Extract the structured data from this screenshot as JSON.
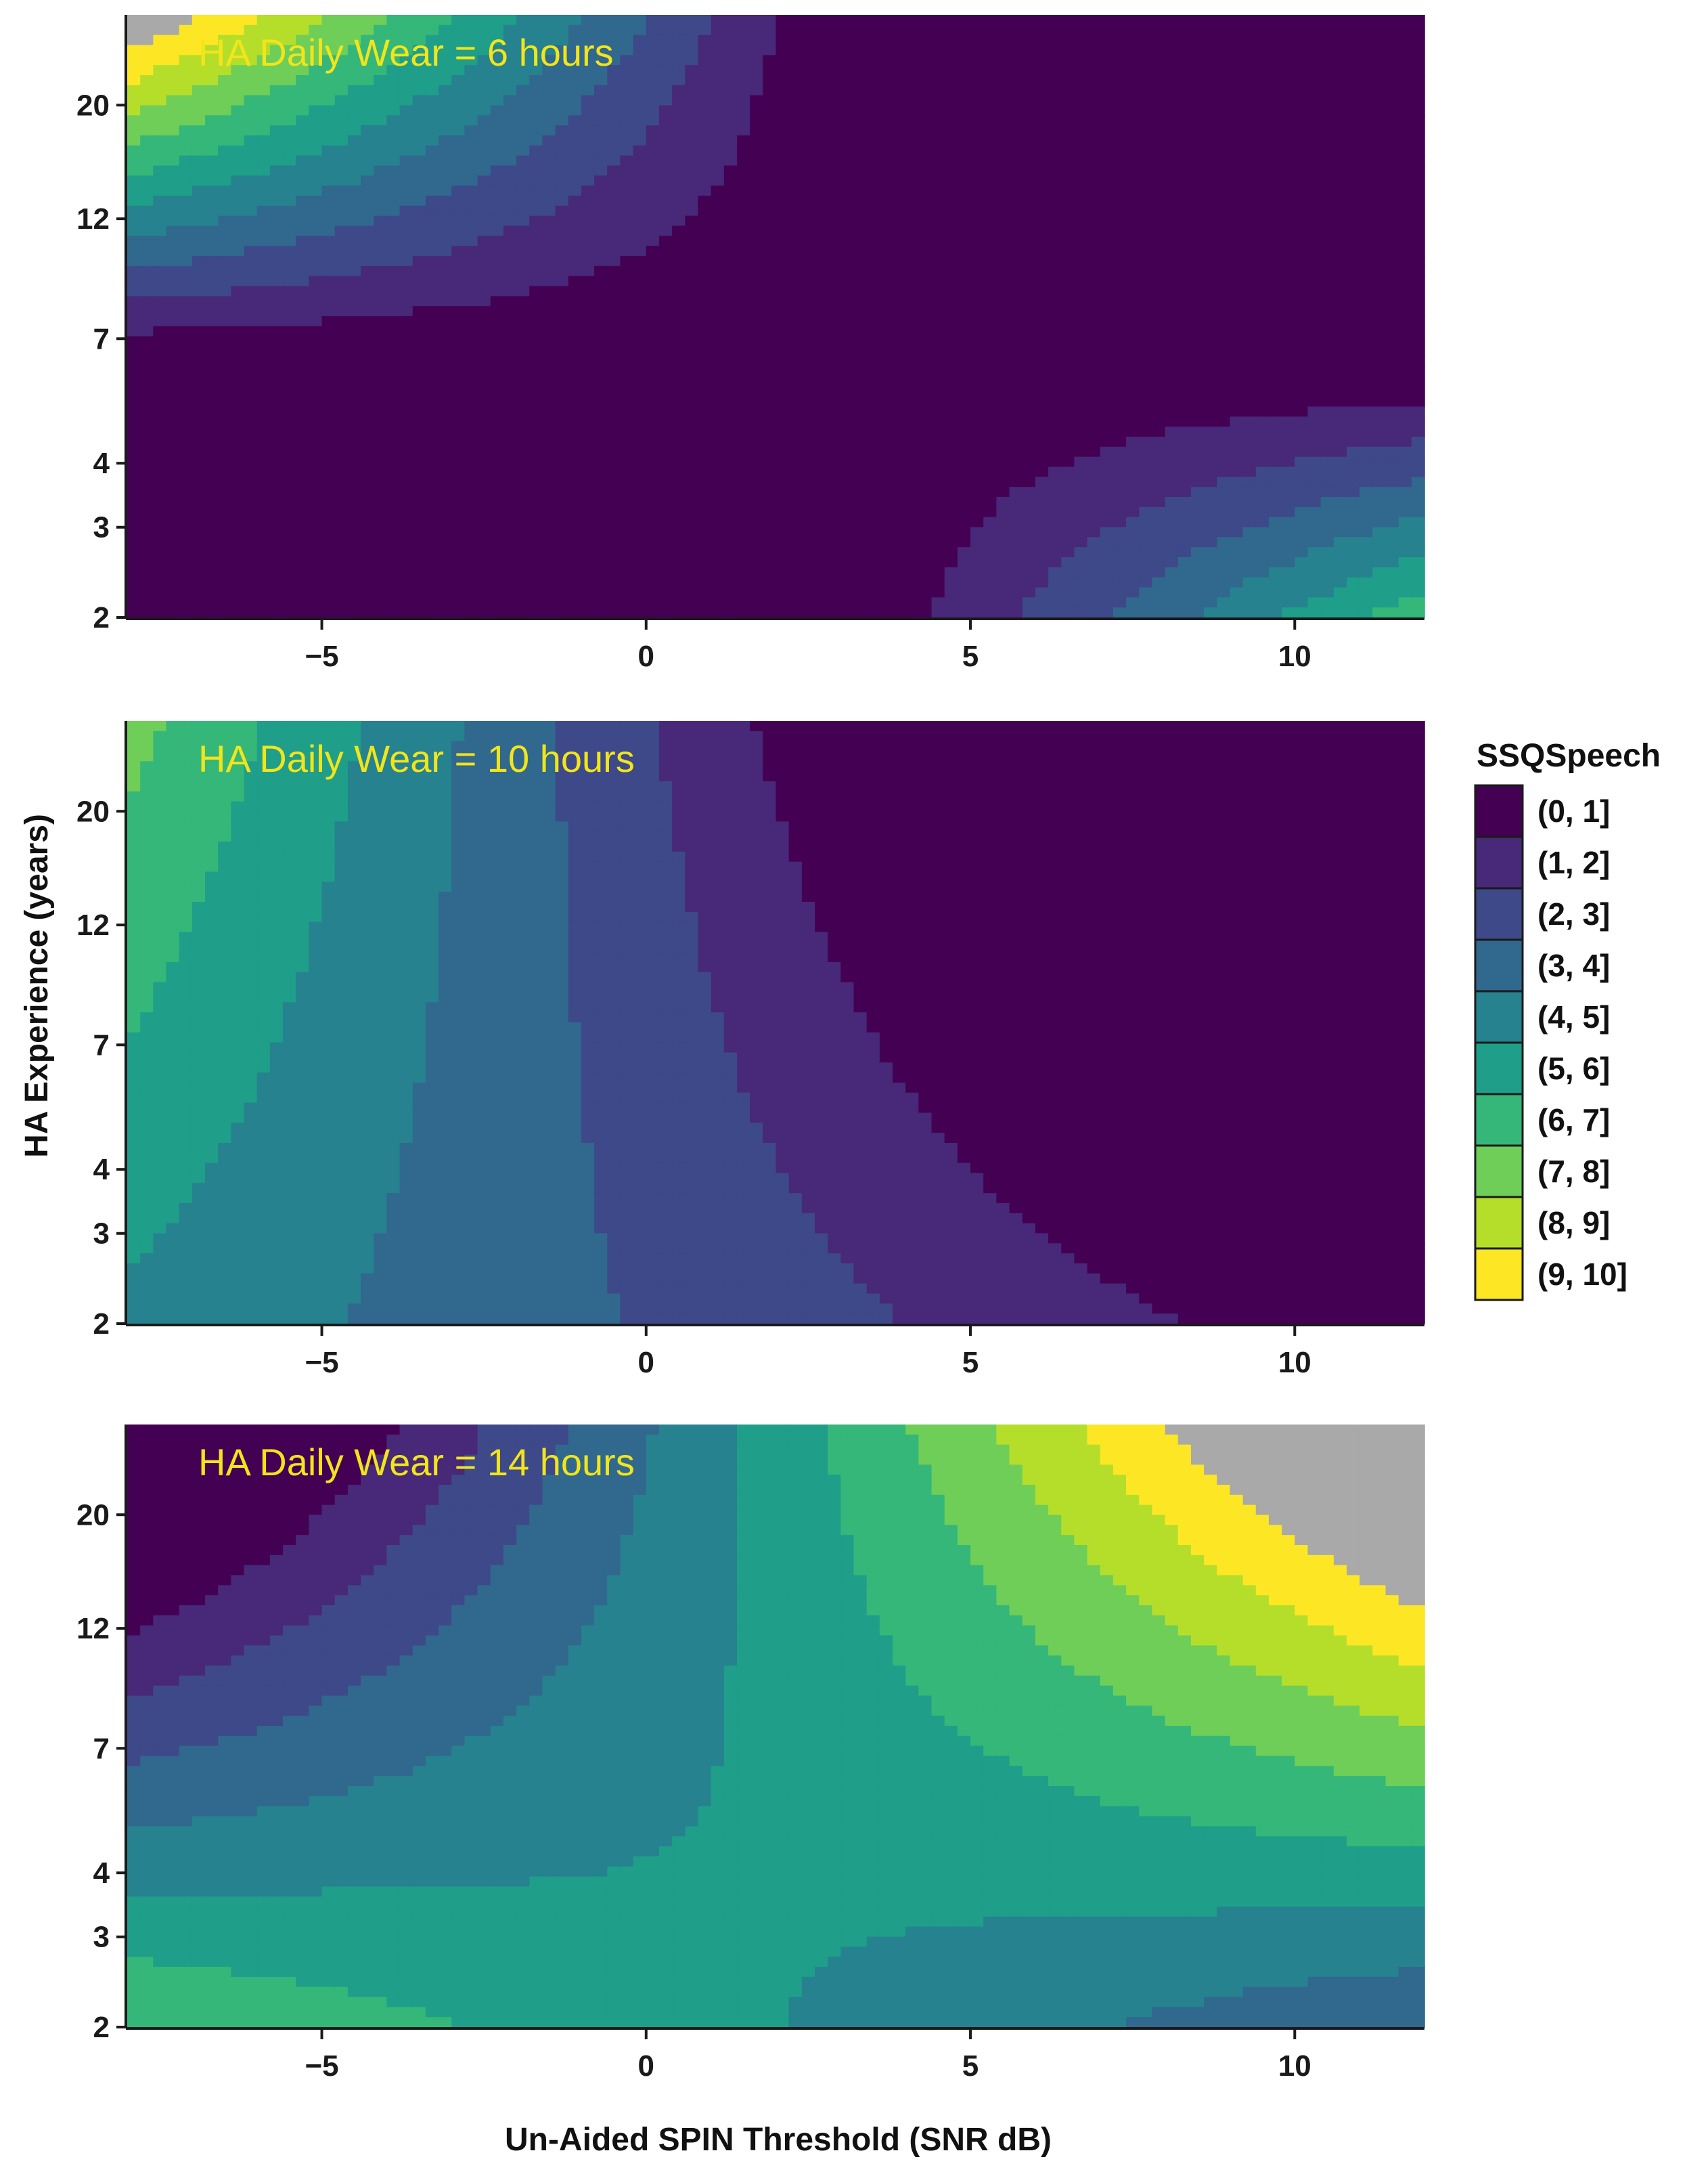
{
  "chart_data": {
    "type": "heatmap",
    "subtype": "filled-contour",
    "xlabel": "Un-Aided SPIN Threshold (SNR dB)",
    "ylabel": "HA Experience (years)",
    "xlim": [
      -8,
      12
    ],
    "ylim": [
      2,
      30
    ],
    "y_scale": "log",
    "x_ticks": [
      -5,
      0,
      5,
      10
    ],
    "y_ticks": [
      2,
      3,
      4,
      7,
      12,
      20
    ],
    "shared_axes": true,
    "grid": false,
    "legend": {
      "title": "SSQSpeech",
      "placement": "right",
      "bins": [
        {
          "label": "(0, 1]",
          "color": "#440154"
        },
        {
          "label": "(1, 2]",
          "color": "#482878"
        },
        {
          "label": "(2, 3]",
          "color": "#3e4989"
        },
        {
          "label": "(3, 4]",
          "color": "#31688e"
        },
        {
          "label": "(4, 5]",
          "color": "#26828e"
        },
        {
          "label": "(5, 6]",
          "color": "#1f9e89"
        },
        {
          "label": "(6, 7]",
          "color": "#35b779"
        },
        {
          "label": "(7, 8]",
          "color": "#6ece58"
        },
        {
          "label": "(8, 9]",
          "color": "#b5de2b"
        },
        {
          "label": "(9, 10]",
          "color": "#fde725"
        }
      ],
      "outside_color": "#a9a9a9"
    },
    "panels": [
      {
        "title": "HA Daily Wear = 6 hours",
        "daily_wear_hours": 6,
        "contour_model": {
          "base": 0.7,
          "sx": 0.4,
          "sy": 0.18,
          "ref_x": 2.2,
          "ref_t": 4.6,
          "interaction": 0.0,
          "band_x_shift": 0.0
        }
      },
      {
        "title": "HA Daily Wear = 10 hours",
        "daily_wear_hours": 10,
        "contour_model": {
          "base": 3.0,
          "sx": 0.18,
          "sy": -0.05,
          "ref_x": -1.0,
          "ref_t": 2.5,
          "interaction": -0.2,
          "band_x_shift": 0.0
        }
      },
      {
        "title": "HA Daily Wear = 14 hours",
        "daily_wear_hours": 14,
        "contour_model": {
          "base": 5.2,
          "sx": -0.1,
          "sy": 0.05,
          "ref_x": 2.0,
          "ref_t": 2.7,
          "interaction": 0.45,
          "band_x_shift": 0.0
        }
      }
    ]
  }
}
